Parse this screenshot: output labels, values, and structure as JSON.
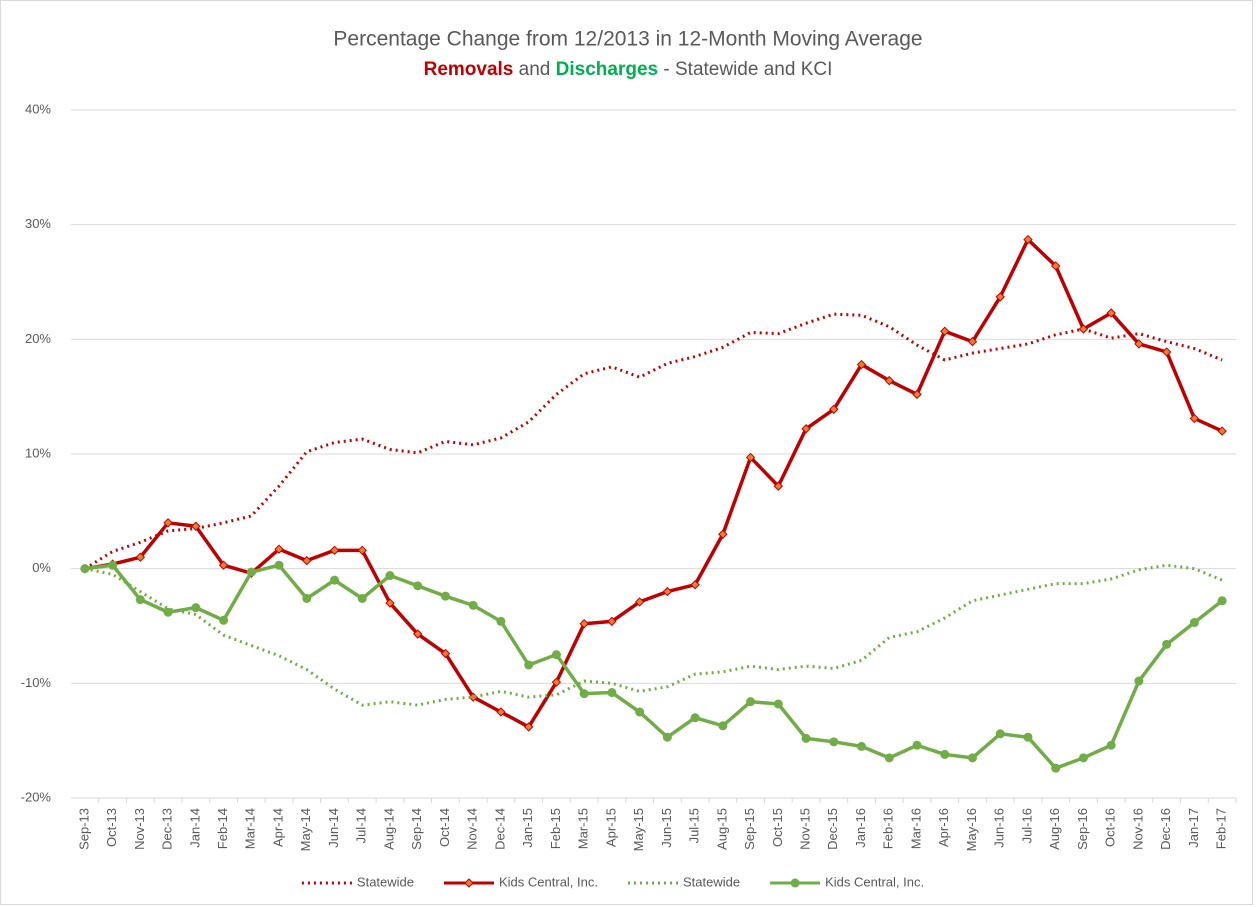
{
  "chart_data": {
    "type": "line",
    "title": "Percentage Change from 12/2013 in 12-Month Moving Average",
    "subtitle_parts": [
      {
        "text": "Removals",
        "color": "#c00000",
        "bold": true
      },
      {
        "text": " and ",
        "color": "#595959",
        "bold": false
      },
      {
        "text": "Discharges",
        "color": "#00b050",
        "bold": true
      },
      {
        "text": " - Statewide and KCI",
        "color": "#595959",
        "bold": false
      }
    ],
    "categories": [
      "Sep-13",
      "Oct-13",
      "Nov-13",
      "Dec-13",
      "Jan-14",
      "Feb-14",
      "Mar-14",
      "Apr-14",
      "May-14",
      "Jun-14",
      "Jul-14",
      "Aug-14",
      "Sep-14",
      "Oct-14",
      "Nov-14",
      "Dec-14",
      "Jan-15",
      "Feb-15",
      "Mar-15",
      "Apr-15",
      "May-15",
      "Jun-15",
      "Jul-15",
      "Aug-15",
      "Sep-15",
      "Oct-15",
      "Nov-15",
      "Dec-15",
      "Jan-16",
      "Feb-16",
      "Mar-16",
      "Apr-16",
      "May-16",
      "Jun-16",
      "Jul-16",
      "Aug-16",
      "Sep-16",
      "Oct-16",
      "Nov-16",
      "Dec-16",
      "Jan-17",
      "Feb-17"
    ],
    "series": [
      {
        "name": "Statewide",
        "color": "#c00000",
        "dash": "dotted",
        "marker": "none",
        "values": [
          0,
          1.5,
          2.3,
          3.3,
          3.5,
          4.0,
          4.6,
          7.2,
          10.2,
          11.0,
          11.3,
          10.4,
          10.1,
          11.1,
          10.8,
          11.4,
          12.8,
          15.2,
          17.0,
          17.6,
          16.7,
          17.9,
          18.5,
          19.3,
          20.6,
          20.5,
          21.4,
          22.2,
          22.1,
          21.1,
          19.5,
          18.2,
          18.8,
          19.2,
          19.6,
          20.4,
          20.9,
          20.1,
          20.5,
          19.8,
          19.2,
          18.2
        ]
      },
      {
        "name": "Kids Central, Inc.",
        "color": "#c00000",
        "dash": "solid",
        "marker": "diamond",
        "marker_color": "#ed7d31",
        "values": [
          0,
          0.4,
          1.0,
          4.0,
          3.7,
          0.3,
          -0.4,
          1.7,
          0.7,
          1.6,
          1.6,
          -3.0,
          -5.7,
          -7.4,
          -11.2,
          -12.5,
          -13.8,
          -9.9,
          -4.8,
          -4.6,
          -2.9,
          -2.0,
          -1.4,
          3.0,
          9.7,
          7.2,
          12.2,
          13.9,
          17.8,
          16.4,
          15.2,
          20.7,
          19.8,
          23.7,
          28.7,
          26.4,
          20.9,
          22.3,
          19.6,
          18.9,
          13.1,
          12.0
        ]
      },
      {
        "name": "Statewide",
        "color": "#70ad47",
        "dash": "dotted",
        "marker": "none",
        "values": [
          0,
          -0.5,
          -2.0,
          -3.5,
          -4.0,
          -5.8,
          -6.7,
          -7.6,
          -8.8,
          -10.5,
          -11.9,
          -11.6,
          -11.9,
          -11.4,
          -11.2,
          -10.7,
          -11.2,
          -11.0,
          -9.8,
          -10.0,
          -10.7,
          -10.3,
          -9.2,
          -9.0,
          -8.5,
          -8.8,
          -8.5,
          -8.7,
          -8.0,
          -6.0,
          -5.5,
          -4.3,
          -2.8,
          -2.3,
          -1.8,
          -1.3,
          -1.3,
          -0.9,
          -0.1,
          0.3,
          0,
          -1.0
        ]
      },
      {
        "name": "Kids Central, Inc.",
        "color": "#70ad47",
        "dash": "solid",
        "marker": "circle",
        "marker_color": "#70ad47",
        "values": [
          0,
          0.3,
          -2.7,
          -3.8,
          -3.4,
          -4.5,
          -0.3,
          0.3,
          -2.6,
          -1.0,
          -2.6,
          -0.6,
          -1.5,
          -2.4,
          -3.2,
          -4.6,
          -8.4,
          -7.5,
          -10.9,
          -10.8,
          -12.5,
          -14.7,
          -13.0,
          -13.7,
          -11.6,
          -11.8,
          -14.8,
          -15.1,
          -15.5,
          -16.5,
          -15.4,
          -16.2,
          -16.5,
          -14.4,
          -14.7,
          -17.4,
          -16.5,
          -15.4,
          -9.8,
          -6.6,
          -4.7,
          -2.8
        ]
      }
    ],
    "ylim": [
      -20,
      40
    ],
    "yticks": [
      {
        "value": -20,
        "label": "-20%"
      },
      {
        "value": -10,
        "label": "-10%"
      },
      {
        "value": 0,
        "label": "0%"
      },
      {
        "value": 10,
        "label": "10%"
      },
      {
        "value": 20,
        "label": "20%"
      },
      {
        "value": 30,
        "label": "30%"
      },
      {
        "value": 40,
        "label": "40%"
      }
    ],
    "grid": true,
    "legend": "bottom"
  }
}
